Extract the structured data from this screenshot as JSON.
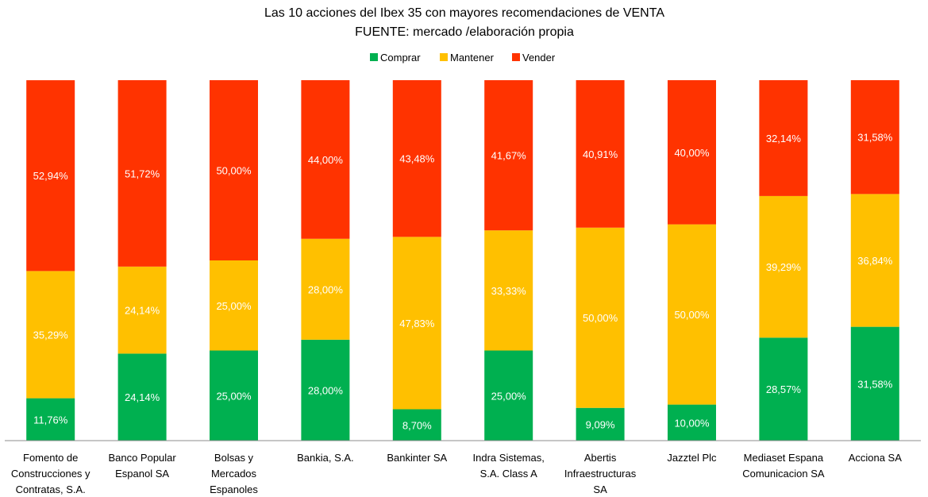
{
  "chart_data": {
    "type": "bar",
    "stacked": true,
    "title": "Las 10 acciones del Ibex 35 con mayores recomendaciones de VENTA",
    "subtitle": "FUENTE: mercado /elaboración propia",
    "xlabel": "",
    "ylabel": "",
    "ylim": [
      0,
      100
    ],
    "grid": false,
    "legend_position": "top",
    "categories": [
      "Fomento de Construcciones y Contratas, S.A.",
      "Banco Popular Espanol SA",
      "Bolsas y Mercados Espanoles",
      "Bankia, S.A.",
      "Bankinter SA",
      "Indra Sistemas, S.A. Class A",
      "Abertis Infraestructuras SA",
      "Jazztel Plc",
      "Mediaset Espana Comunicacion SA",
      "Acciona SA"
    ],
    "category_label_lines": [
      [
        "Fomento de",
        "Construcciones y",
        "Contratas, S.A."
      ],
      [
        "Banco Popular",
        "Espanol SA"
      ],
      [
        "Bolsas y",
        "Mercados",
        "Espanoles"
      ],
      [
        "Bankia, S.A."
      ],
      [
        "Bankinter SA"
      ],
      [
        "Indra Sistemas,",
        "S.A. Class A"
      ],
      [
        "Abertis",
        "Infraestructuras",
        "SA"
      ],
      [
        "Jazztel Plc"
      ],
      [
        "Mediaset Espana",
        "Comunicacion SA"
      ],
      [
        "Acciona SA"
      ]
    ],
    "series": [
      {
        "name": "Comprar",
        "color": "#00b050",
        "values": [
          11.76,
          24.14,
          25.0,
          28.0,
          8.7,
          25.0,
          9.09,
          10.0,
          28.57,
          31.58
        ],
        "labels": [
          "11,76%",
          "24,14%",
          "25,00%",
          "28,00%",
          "8,70%",
          "25,00%",
          "9,09%",
          "10,00%",
          "28,57%",
          "31,58%"
        ]
      },
      {
        "name": "Mantener",
        "color": "#ffc000",
        "values": [
          35.29,
          24.14,
          25.0,
          28.0,
          47.83,
          33.33,
          50.0,
          50.0,
          39.29,
          36.84
        ],
        "labels": [
          "35,29%",
          "24,14%",
          "25,00%",
          "28,00%",
          "47,83%",
          "33,33%",
          "50,00%",
          "50,00%",
          "39,29%",
          "36,84%"
        ]
      },
      {
        "name": "Vender",
        "color": "#ff3300",
        "values": [
          52.94,
          51.72,
          50.0,
          44.0,
          43.48,
          41.67,
          40.91,
          40.0,
          32.14,
          31.58
        ],
        "labels": [
          "52,94%",
          "51,72%",
          "50,00%",
          "44,00%",
          "43,48%",
          "41,67%",
          "40,91%",
          "40,00%",
          "32,14%",
          "31,58%"
        ]
      }
    ]
  }
}
